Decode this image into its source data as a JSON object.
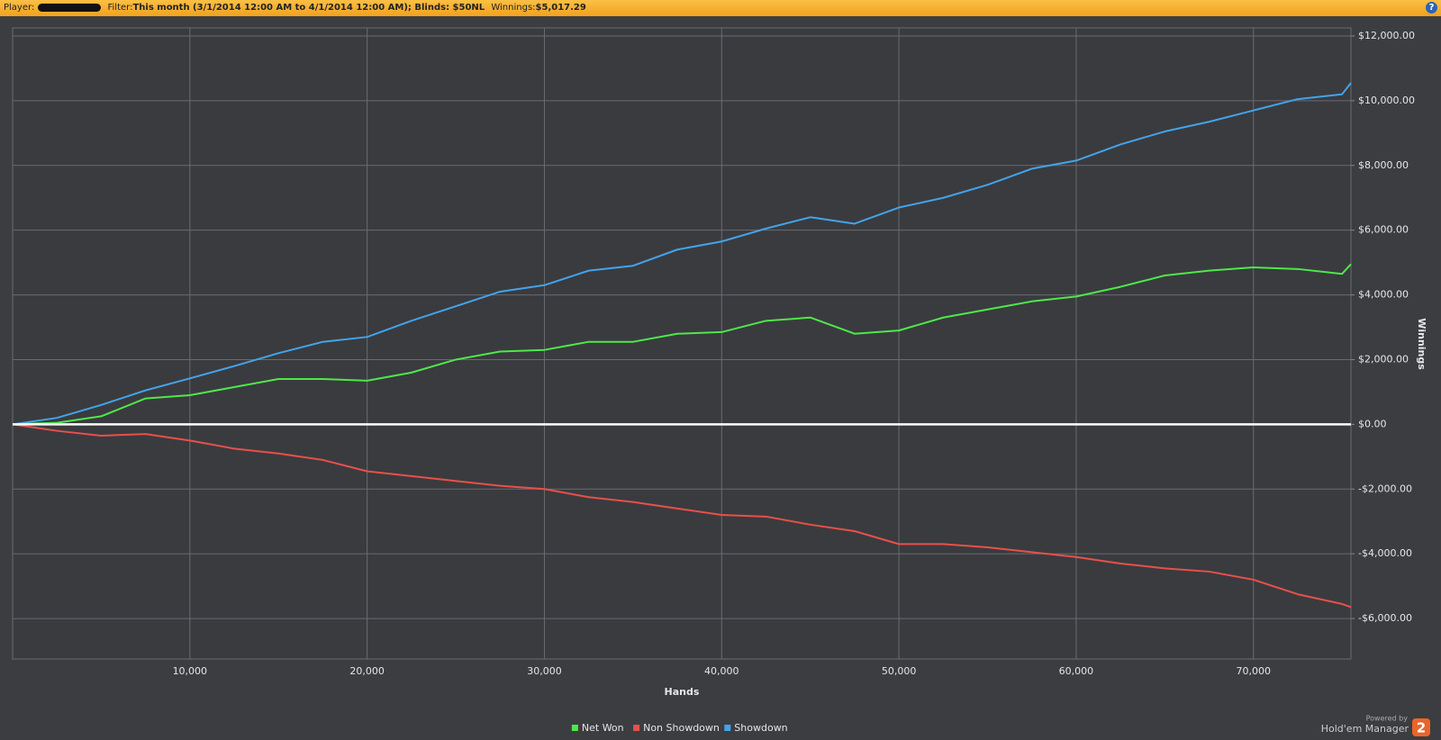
{
  "header": {
    "player_label": "Player:",
    "filter_label": "Filter:",
    "filter": "This month (3/1/2014 12:00 AM to 4/1/2014 12:00 AM); Blinds: $50NL",
    "winnings_label": "Winnings:",
    "winnings": "$5,017.29",
    "help": "?"
  },
  "footer": {
    "powered_by": "Powered by",
    "product": "Hold'em Manager",
    "version": "2"
  },
  "chart_data": {
    "type": "line",
    "x_label": "Hands",
    "y_label": "Winnings",
    "x": [
      0,
      2500,
      5000,
      7500,
      10000,
      12500,
      15000,
      17500,
      20000,
      22500,
      25000,
      27500,
      30000,
      32500,
      35000,
      37500,
      40000,
      42500,
      45000,
      47500,
      50000,
      52500,
      55000,
      57500,
      60000,
      62500,
      65000,
      67500,
      70000,
      72500,
      75000,
      75500
    ],
    "series": [
      {
        "name": "Net Won",
        "color": "#4ee84a",
        "values": [
          0,
          50,
          250,
          800,
          900,
          1150,
          1400,
          1400,
          1350,
          1600,
          2000,
          2250,
          2300,
          2550,
          2550,
          2800,
          2850,
          3200,
          3300,
          2800,
          2900,
          3300,
          3550,
          3800,
          3950,
          4250,
          4600,
          4750,
          4850,
          4800,
          4650,
          4950
        ]
      },
      {
        "name": "Non Showdown",
        "color": "#e8504a",
        "values": [
          0,
          -200,
          -350,
          -300,
          -500,
          -750,
          -900,
          -1100,
          -1450,
          -1600,
          -1750,
          -1900,
          -2000,
          -2250,
          -2400,
          -2600,
          -2800,
          -2850,
          -3100,
          -3300,
          -3700,
          -3700,
          -3800,
          -3950,
          -4100,
          -4300,
          -4450,
          -4550,
          -4800,
          -5250,
          -5550,
          -5650
        ]
      },
      {
        "name": "Showdown",
        "color": "#42a4ea",
        "values": [
          0,
          200,
          600,
          1050,
          1420,
          1800,
          2200,
          2550,
          2700,
          3200,
          3650,
          4100,
          4300,
          4750,
          4900,
          5400,
          5650,
          6050,
          6400,
          6200,
          6700,
          7000,
          7400,
          7900,
          8150,
          8650,
          9050,
          9350,
          9700,
          10050,
          10200,
          10550
        ]
      }
    ],
    "xlim": [
      0,
      75500
    ],
    "ylim": [
      -7250,
      12250
    ],
    "xticks": [
      {
        "value": 10000,
        "label": "10,000"
      },
      {
        "value": 20000,
        "label": "20,000"
      },
      {
        "value": 30000,
        "label": "30,000"
      },
      {
        "value": 40000,
        "label": "40,000"
      },
      {
        "value": 50000,
        "label": "50,000"
      },
      {
        "value": 60000,
        "label": "60,000"
      },
      {
        "value": 70000,
        "label": "70,000"
      }
    ],
    "yticks": [
      {
        "value": -6000,
        "label": "-$6,000.00"
      },
      {
        "value": -4000,
        "label": "-$4,000.00"
      },
      {
        "value": -2000,
        "label": "-$2,000.00"
      },
      {
        "value": 0,
        "label": "$0.00"
      },
      {
        "value": 2000,
        "label": "$2,000.00"
      },
      {
        "value": 4000,
        "label": "$4,000.00"
      },
      {
        "value": 6000,
        "label": "$6,000.00"
      },
      {
        "value": 8000,
        "label": "$8,000.00"
      },
      {
        "value": 10000,
        "label": "$10,000.00"
      },
      {
        "value": 12000,
        "label": "$12,000.00"
      }
    ],
    "grid": true,
    "zero_line": true,
    "legend": "bottom"
  }
}
